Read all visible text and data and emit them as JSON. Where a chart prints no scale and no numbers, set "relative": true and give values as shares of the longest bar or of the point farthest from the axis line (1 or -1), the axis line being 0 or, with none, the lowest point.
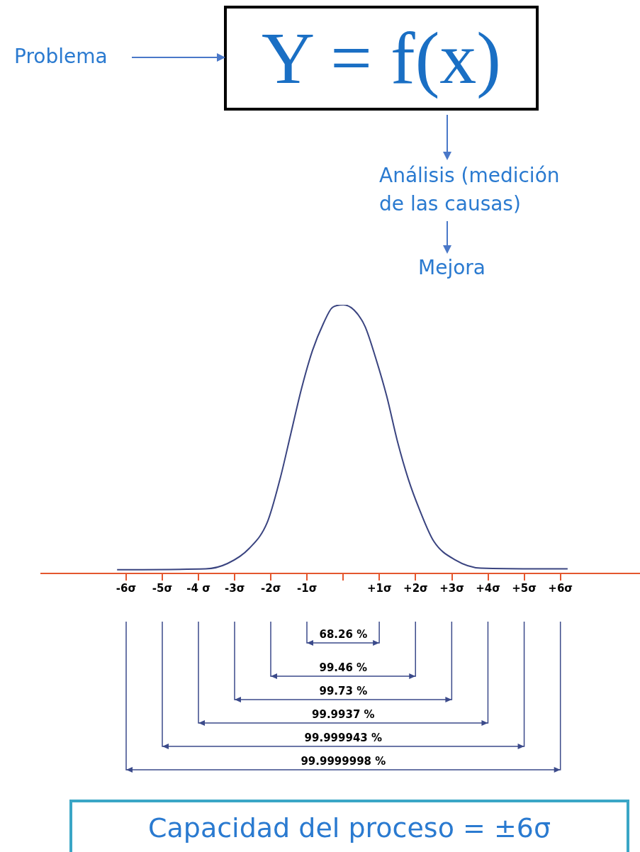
{
  "chart_data": {
    "type": "line",
    "title": "Y = f(x)",
    "relative": true,
    "color": "#3a4480",
    "marker": "none",
    "x": [
      -6.25,
      -3.8,
      -3.2,
      -2.6,
      -2.1,
      -1.75,
      -1.45,
      -1.15,
      -0.85,
      -0.55,
      -0.3,
      0,
      0.3,
      0.6,
      0.9,
      1.2,
      1.5,
      1.8,
      2.1,
      2.5,
      3.1,
      3.8,
      6.2
    ],
    "values": [
      0.014,
      0.017,
      0.037,
      0.093,
      0.19,
      0.35,
      0.52,
      0.69,
      0.83,
      0.93,
      0.99,
      1,
      0.98,
      0.92,
      0.8,
      0.66,
      0.49,
      0.35,
      0.24,
      0.12,
      0.05,
      0.02,
      0.017
    ],
    "xlim": [
      -8.35,
      8.2
    ],
    "xticks": [
      {
        "value": -6,
        "label": "-6σ"
      },
      {
        "value": -5,
        "label": "-5σ"
      },
      {
        "value": -4,
        "label": "-4 σ"
      },
      {
        "value": -3,
        "label": "-3σ"
      },
      {
        "value": -2,
        "label": "-2σ"
      },
      {
        "value": -1,
        "label": "-1σ"
      },
      {
        "value": 0,
        "label": null
      },
      {
        "value": 1,
        "label": "+1σ"
      },
      {
        "value": 2,
        "label": "+2σ"
      },
      {
        "value": 3,
        "label": "+3σ"
      },
      {
        "value": 4,
        "label": "+4σ"
      },
      {
        "value": 5,
        "label": "+5σ"
      },
      {
        "value": 6,
        "label": "+6σ"
      }
    ],
    "annotations": [
      "Problema",
      "Análisis (medición de las causas)",
      "Mejora",
      "Capacidad del proceso = ±6σ",
      "68.26 %",
      "99.46 %",
      "99.73 %",
      "99.9937 %",
      "99.999943 %",
      "99.9999998 %"
    ],
    "tick_labels": "x",
    "grid": false,
    "legend": false
  }
}
